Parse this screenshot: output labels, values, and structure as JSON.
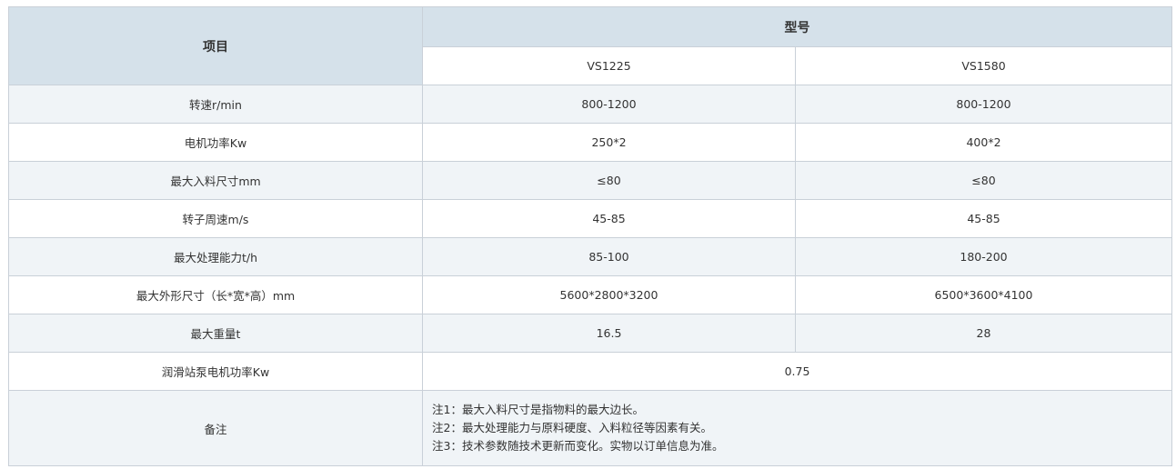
{
  "header": {
    "item": "项目",
    "model": "型号",
    "models": [
      "VS1225",
      "VS1580"
    ]
  },
  "rows": [
    {
      "label": "转速r/min",
      "values": [
        "800-1200",
        "800-1200"
      ]
    },
    {
      "label": "电机功率Kw",
      "values": [
        "250*2",
        "400*2"
      ]
    },
    {
      "label": "最大入料尺寸mm",
      "values": [
        "≤80",
        "≤80"
      ]
    },
    {
      "label": "转子周速m/s",
      "values": [
        "45-85",
        "45-85"
      ]
    },
    {
      "label": "最大处理能力t/h",
      "values": [
        "85-100",
        "180-200"
      ]
    },
    {
      "label": "最大外形尺寸（长*宽*高）mm",
      "values": [
        "5600*2800*3200",
        "6500*3600*4100"
      ]
    },
    {
      "label": "最大重量t",
      "values": [
        "16.5",
        "28"
      ]
    }
  ],
  "lube": {
    "label": "润滑站泵电机功率Kw",
    "value": "0.75"
  },
  "notes": {
    "label": "备注",
    "lines": [
      "注1：最大入料尺寸是指物料的最大边长。",
      "注2：最大处理能力与原料硬度、入料粒径等因素有关。",
      "注3：技术参数随技术更新而变化。实物以订单信息为准。"
    ]
  }
}
